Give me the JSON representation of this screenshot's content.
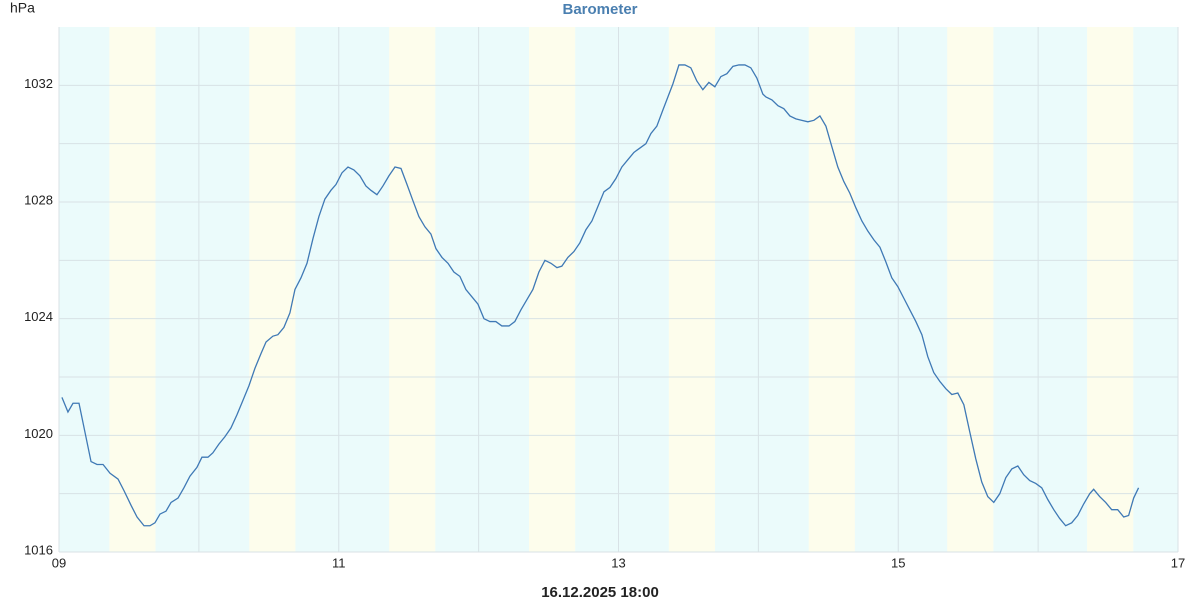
{
  "chart_data": {
    "type": "line",
    "title": "Barometer",
    "y_label": "hPa",
    "x_label": "16.12.2025 18:00",
    "color": "#3f79b5",
    "background": "#ebfbfb",
    "band_color": "#fdfdec",
    "grid": true,
    "xlim": [
      9,
      17
    ],
    "ylim": [
      1016,
      1034
    ],
    "xticks": [
      {
        "value": 9,
        "label": "09"
      },
      11,
      13,
      15,
      17
    ],
    "yticks": [
      1016,
      1020,
      1024,
      1028,
      1032
    ],
    "x_grid": [
      10,
      12,
      14,
      16
    ],
    "y_grid": [
      1018,
      1022,
      1026,
      1030
    ],
    "bands": [
      [
        9.36,
        9.69
      ],
      [
        10.36,
        10.69
      ],
      [
        11.36,
        11.69
      ],
      [
        12.36,
        12.69
      ],
      [
        13.36,
        13.69
      ],
      [
        14.36,
        14.69
      ],
      [
        15.35,
        15.68
      ],
      [
        16.35,
        16.68
      ]
    ],
    "x": [
      9.021,
      9.064,
      9.1,
      9.143,
      9.229,
      9.272,
      9.315,
      9.365,
      9.422,
      9.465,
      9.515,
      9.558,
      9.608,
      9.65,
      9.686,
      9.722,
      9.765,
      9.801,
      9.851,
      9.893,
      9.936,
      9.986,
      10.022,
      10.065,
      10.1,
      10.143,
      10.186,
      10.229,
      10.272,
      10.315,
      10.358,
      10.401,
      10.444,
      10.48,
      10.529,
      10.565,
      10.608,
      10.651,
      10.687,
      10.73,
      10.773,
      10.816,
      10.858,
      10.901,
      10.944,
      10.98,
      11.023,
      11.066,
      11.108,
      11.151,
      11.194,
      11.23,
      11.273,
      11.316,
      11.359,
      11.402,
      11.445,
      11.488,
      11.53,
      11.573,
      11.616,
      11.659,
      11.695,
      11.738,
      11.781,
      11.823,
      11.866,
      11.909,
      11.952,
      11.995,
      12.038,
      12.081,
      12.123,
      12.166,
      12.217,
      12.259,
      12.302,
      12.345,
      12.388,
      12.431,
      12.474,
      12.517,
      12.56,
      12.595,
      12.638,
      12.681,
      12.724,
      12.767,
      12.81,
      12.853,
      12.896,
      12.939,
      12.981,
      13.024,
      13.067,
      13.11,
      13.153,
      13.196,
      13.232,
      13.274,
      13.317,
      13.353,
      13.389,
      13.432,
      13.475,
      13.517,
      13.56,
      13.603,
      13.646,
      13.689,
      13.732,
      13.775,
      13.818,
      13.861,
      13.904,
      13.946,
      13.989,
      14.032,
      14.054,
      14.097,
      14.14,
      14.182,
      14.225,
      14.268,
      14.311,
      14.354,
      14.397,
      14.44,
      14.483,
      14.525,
      14.568,
      14.611,
      14.654,
      14.697,
      14.74,
      14.783,
      14.826,
      14.869,
      14.911,
      14.954,
      14.997,
      15.04,
      15.083,
      15.126,
      15.169,
      15.211,
      15.254,
      15.297,
      15.34,
      15.383,
      15.426,
      15.469,
      15.512,
      15.554,
      15.597,
      15.64,
      15.683,
      15.726,
      15.769,
      15.812,
      15.855,
      15.897,
      15.94,
      15.983,
      16.026,
      16.069,
      16.112,
      16.154,
      16.197,
      16.24,
      16.283,
      16.326,
      16.369,
      16.397,
      16.44,
      16.483,
      16.526,
      16.569,
      16.612,
      16.647,
      16.683,
      16.718
    ],
    "values": [
      1021.3,
      1020.8,
      1021.1,
      1021.1,
      1019.1,
      1019.0,
      1019.0,
      1018.7,
      1018.5,
      1018.1,
      1017.6,
      1017.2,
      1016.9,
      1016.9,
      1017.0,
      1017.3,
      1017.4,
      1017.7,
      1017.85,
      1018.2,
      1018.6,
      1018.9,
      1019.25,
      1019.25,
      1019.4,
      1019.7,
      1019.95,
      1020.25,
      1020.7,
      1021.2,
      1021.7,
      1022.3,
      1022.8,
      1023.2,
      1023.4,
      1023.45,
      1023.7,
      1024.2,
      1025.0,
      1025.4,
      1025.9,
      1026.75,
      1027.5,
      1028.1,
      1028.4,
      1028.6,
      1029.0,
      1029.2,
      1029.1,
      1028.9,
      1028.55,
      1028.4,
      1028.25,
      1028.55,
      1028.9,
      1029.2,
      1029.15,
      1028.6,
      1028.05,
      1027.5,
      1027.15,
      1026.9,
      1026.4,
      1026.1,
      1025.9,
      1025.6,
      1025.45,
      1025.0,
      1024.75,
      1024.5,
      1024.0,
      1023.9,
      1023.9,
      1023.75,
      1023.75,
      1023.9,
      1024.3,
      1024.65,
      1025.0,
      1025.6,
      1026.0,
      1025.9,
      1025.75,
      1025.8,
      1026.1,
      1026.3,
      1026.6,
      1027.05,
      1027.35,
      1027.85,
      1028.35,
      1028.5,
      1028.8,
      1029.2,
      1029.45,
      1029.7,
      1029.85,
      1030.0,
      1030.35,
      1030.6,
      1031.15,
      1031.6,
      1032.05,
      1032.7,
      1032.7,
      1032.6,
      1032.15,
      1031.85,
      1032.1,
      1031.95,
      1032.3,
      1032.4,
      1032.65,
      1032.7,
      1032.7,
      1032.6,
      1032.25,
      1031.7,
      1031.6,
      1031.5,
      1031.3,
      1031.2,
      1030.95,
      1030.85,
      1030.8,
      1030.75,
      1030.8,
      1030.95,
      1030.6,
      1029.9,
      1029.2,
      1028.7,
      1028.3,
      1027.8,
      1027.35,
      1027.0,
      1026.7,
      1026.45,
      1025.95,
      1025.4,
      1025.1,
      1024.7,
      1024.3,
      1023.9,
      1023.45,
      1022.7,
      1022.15,
      1021.85,
      1021.6,
      1021.4,
      1021.45,
      1021.05,
      1020.1,
      1019.2,
      1018.4,
      1017.9,
      1017.7,
      1018.0,
      1018.55,
      1018.85,
      1018.95,
      1018.65,
      1018.45,
      1018.35,
      1018.2,
      1017.8,
      1017.45,
      1017.15,
      1016.9,
      1017.0,
      1017.25,
      1017.65,
      1018.0,
      1018.15,
      1017.9,
      1017.7,
      1017.45,
      1017.45,
      1017.2,
      1017.25,
      1017.85,
      1018.2
    ]
  }
}
